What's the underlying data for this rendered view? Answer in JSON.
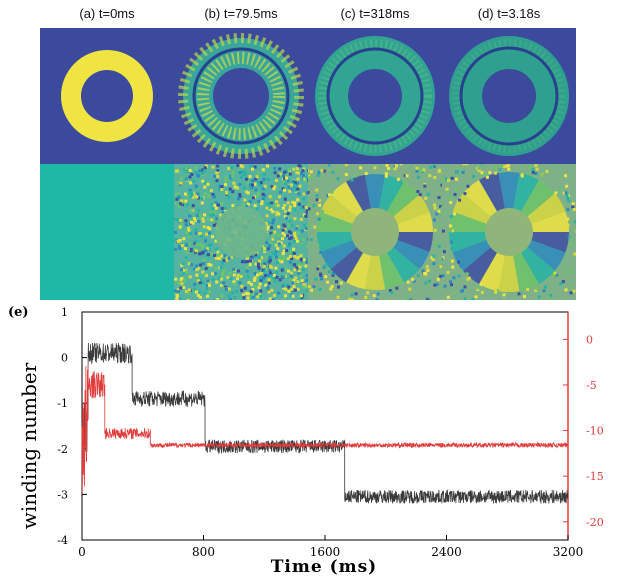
{
  "panels": [
    {
      "label": "(a) t=0ms"
    },
    {
      "label": "(b) t=79.5ms"
    },
    {
      "label": "(c) t=318ms"
    },
    {
      "label": "(d) t=3.18s"
    }
  ],
  "colors": {
    "density_bg": "#3b4a9c",
    "ring_yellow": "#f0e442",
    "phase_uniform": "#1fb7a6",
    "series_winding": "#3a3a3a",
    "series_right": "#e23b3b"
  },
  "chart_data": {
    "type": "line",
    "panel_label": "(e)",
    "xlabel": "Time (ms)",
    "ylabel": "winding number",
    "xlim": [
      0,
      3200
    ],
    "ylim_left": [
      -4,
      1
    ],
    "ylim_right": [
      -22,
      3
    ],
    "x_ticks": [
      "0",
      "800",
      "1600",
      "2400",
      "3200"
    ],
    "y_ticks_left": [
      "1",
      "0",
      "-1",
      "-2",
      "-3",
      "-4"
    ],
    "y_ticks_right": [
      "0",
      "-5",
      "-10",
      "-15",
      "-20"
    ],
    "series": [
      {
        "color": "#3a3a3a",
        "axis": "left",
        "segments": [
          {
            "x0": 0,
            "x1": 40,
            "mean": -1.5,
            "noise": 1.2
          },
          {
            "x0": 40,
            "x1": 330,
            "mean": 0.1,
            "noise": 0.45
          },
          {
            "x0": 330,
            "x1": 810,
            "mean": -0.9,
            "noise": 0.35
          },
          {
            "x0": 810,
            "x1": 1730,
            "mean": -1.95,
            "noise": 0.3
          },
          {
            "x0": 1730,
            "x1": 3200,
            "mean": -3.05,
            "noise": 0.3
          }
        ]
      },
      {
        "color": "#e23b3b",
        "axis": "right",
        "segments": [
          {
            "x0": 0,
            "x1": 40,
            "mean": -10,
            "noise": 16
          },
          {
            "x0": 40,
            "x1": 150,
            "mean": -5,
            "noise": 3
          },
          {
            "x0": 150,
            "x1": 450,
            "mean": -10.3,
            "noise": 1.2
          },
          {
            "x0": 450,
            "x1": 3200,
            "mean": -11.6,
            "noise": 0.5
          }
        ]
      }
    ]
  }
}
